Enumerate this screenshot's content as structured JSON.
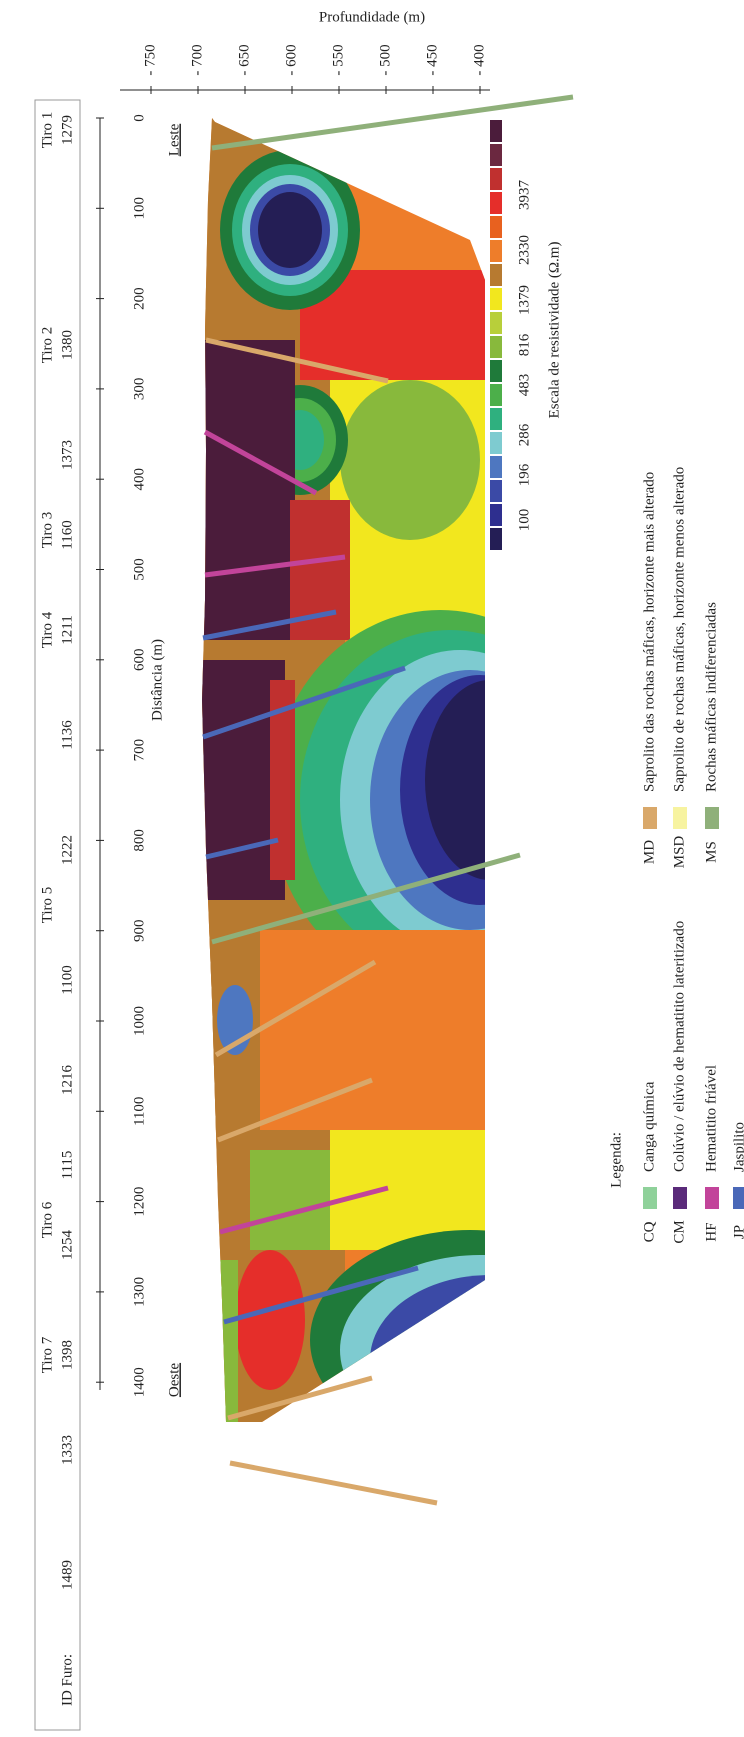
{
  "title": "Profundidade (m)",
  "depth_ticks": [
    "- 750",
    "- 700",
    "- 650",
    "- 600",
    "- 550",
    "- 500",
    "- 450",
    "- 400"
  ],
  "distance_label": "Distância (m)",
  "distance_ticks": [
    "0",
    "100",
    "200",
    "300",
    "400",
    "500",
    "600",
    "700",
    "800",
    "900",
    "1000",
    "1100",
    "1200",
    "1300",
    "1400"
  ],
  "east": "Leste",
  "west": "Oeste",
  "shots": [
    "Tiro 1",
    "Tiro 2",
    "Tiro 3",
    "Tiro 4",
    "Tiro 5",
    "Tiro 6",
    "Tiro 7"
  ],
  "borehole_header": "ID Furo:",
  "boreholes": [
    "1279",
    "1380",
    "1373",
    "1160",
    "1211",
    "1136",
    "1222",
    "1100",
    "1216",
    "1115",
    "1254",
    "1398",
    "1333",
    "1489"
  ],
  "scale": {
    "title": "Escala de resistividade (Ω.m)",
    "labels": [
      "100",
      "196",
      "286",
      "483",
      "816",
      "1379",
      "2330",
      "3937"
    ]
  },
  "legend": {
    "title": "Legenda:",
    "items": [
      {
        "code": "CQ",
        "label": "Canga química"
      },
      {
        "code": "CM",
        "label": "Colúvio / elúvio de hematitito lateritizado"
      },
      {
        "code": "HF",
        "label": "Hematitito friável"
      },
      {
        "code": "JP",
        "label": "Jaspilito"
      },
      {
        "code": "MD",
        "label": "Saprolito das rochas máficas, horizonte mais alterado"
      },
      {
        "code": "MSD",
        "label": "Saprolito de rochas máficas, horizonte menos alterado"
      },
      {
        "code": "MS",
        "label": "Rochas máficas indiferenciadas"
      }
    ]
  }
}
